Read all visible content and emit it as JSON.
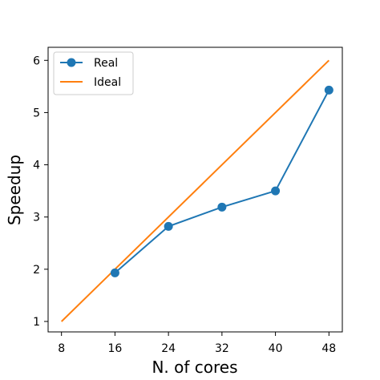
{
  "chart_data": {
    "type": "line",
    "xlabel": "N. of cores",
    "ylabel": "Speedup",
    "xlim": [
      6,
      50
    ],
    "ylim": [
      0.8,
      6.25
    ],
    "xticks": [
      8,
      16,
      24,
      32,
      40,
      48
    ],
    "yticks": [
      1,
      2,
      3,
      4,
      5,
      6
    ],
    "grid": false,
    "legend_position": "top-left",
    "series": [
      {
        "name": "Real",
        "color": "#1f77b4",
        "marker": "circle",
        "x": [
          16,
          24,
          32,
          40,
          48
        ],
        "y": [
          1.93,
          2.82,
          3.19,
          3.5,
          5.43
        ]
      },
      {
        "name": "Ideal",
        "color": "#ff7f0e",
        "marker": "none",
        "x": [
          8,
          48
        ],
        "y": [
          1,
          6
        ]
      }
    ]
  }
}
